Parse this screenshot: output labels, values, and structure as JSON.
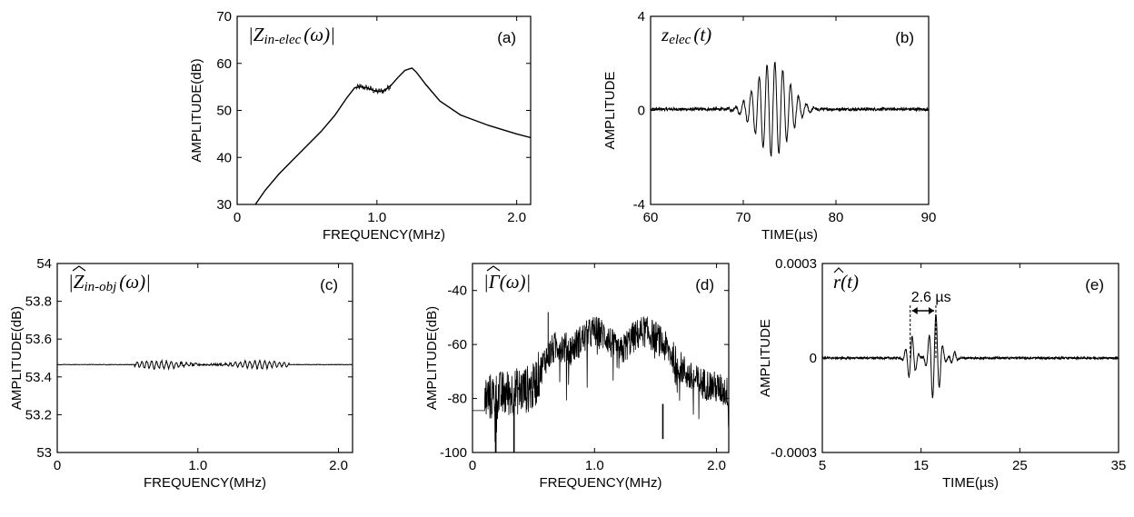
{
  "chart_data": [
    {
      "id": "a",
      "type": "line",
      "panel_label": "(a)",
      "title": "|Z",
      "title_sub": "in-elec",
      "title_tail": "(ω)|",
      "xlabel": "FREQUENCY(MHz)",
      "ylabel": "AMPLITUDE(dB)",
      "xlim": [
        0,
        2.1
      ],
      "ylim": [
        30,
        70
      ],
      "xticks": [
        0,
        1.0,
        2.0
      ],
      "xtick_labels": [
        "0",
        "1.0",
        "2.0"
      ],
      "yticks": [
        30,
        40,
        50,
        60,
        70
      ],
      "ytick_labels": [
        "30",
        "40",
        "50",
        "60",
        "70"
      ],
      "series": [
        {
          "x": [
            0.13,
            0.2,
            0.3,
            0.4,
            0.5,
            0.6,
            0.7,
            0.78,
            0.84,
            0.88,
            0.93,
            1.0,
            1.05,
            1.1,
            1.15,
            1.2,
            1.25,
            1.28,
            1.35,
            1.45,
            1.6,
            1.8,
            2.0,
            2.1
          ],
          "y": [
            30,
            33,
            36.5,
            39.5,
            42.5,
            45.5,
            49,
            52.5,
            54.8,
            55,
            54.8,
            54,
            54.2,
            55.3,
            57,
            58.5,
            59,
            58.2,
            55.5,
            52,
            49,
            46.8,
            45,
            44.2
          ]
        }
      ],
      "noise_band": [
        0.85,
        1.1
      ]
    },
    {
      "id": "b",
      "type": "line",
      "panel_label": "(b)",
      "title": "z",
      "title_sub": "elec",
      "title_tail": "(t)",
      "xlabel": "TIME(µs)",
      "ylabel": "AMPLITUDE",
      "xlim": [
        60,
        90
      ],
      "ylim": [
        -4,
        4
      ],
      "xticks": [
        60,
        70,
        80,
        90
      ],
      "xtick_labels": [
        "60",
        "70",
        "80",
        "90"
      ],
      "yticks": [
        -4,
        0,
        4
      ],
      "ytick_labels": [
        "-4",
        "0",
        "4"
      ],
      "signal": {
        "type": "wave_packet",
        "center": 73.2,
        "width": 2.4,
        "amplitude": 2.0,
        "period": 0.85,
        "baseline": 0.05
      }
    },
    {
      "id": "c",
      "type": "line",
      "panel_label": "(c)",
      "title": "|Z",
      "title_sub": "in-obj",
      "title_tail": "(ω)|",
      "xlabel": "FREQUENCY(MHz)",
      "ylabel": "AMPLITUDE(dB)",
      "xlim": [
        0,
        2.1
      ],
      "ylim": [
        53,
        54
      ],
      "xticks": [
        0,
        1.0,
        2.0
      ],
      "xtick_labels": [
        "0",
        "1.0",
        "2.0"
      ],
      "yticks": [
        53,
        53.2,
        53.4,
        53.6,
        53.8,
        54
      ],
      "ytick_labels": [
        "53",
        "53.2",
        "53.4",
        "53.6",
        "53.8",
        "54"
      ],
      "signal": {
        "type": "flat_ripple",
        "level": 53.465,
        "ripple": 0.02,
        "band": [
          0.55,
          1.65
        ]
      }
    },
    {
      "id": "d",
      "type": "line",
      "panel_label": "(d)",
      "title": "|Γ(ω)|",
      "title_sub": "",
      "title_tail": "",
      "xlabel": "FREQUENCY(MHz)",
      "ylabel": "AMPLITUDE(dB)",
      "xlim": [
        0,
        2.1
      ],
      "ylim": [
        -100,
        -30
      ],
      "xticks": [
        0,
        1.0,
        2.0
      ],
      "xtick_labels": [
        "0",
        "1.0",
        "2.0"
      ],
      "yticks": [
        -100,
        -80,
        -60,
        -40
      ],
      "ytick_labels": [
        "-100",
        "-80",
        "-60",
        "-40"
      ],
      "envelope": {
        "x": [
          0.1,
          0.3,
          0.5,
          0.6,
          0.7,
          0.8,
          0.9,
          1.0,
          1.1,
          1.2,
          1.3,
          1.4,
          1.5,
          1.6,
          1.7,
          1.8,
          2.0,
          2.1
        ],
        "y": [
          -80,
          -78,
          -76,
          -65,
          -60,
          -62,
          -58,
          -55,
          -57,
          -64,
          -58,
          -55,
          -57,
          -62,
          -68,
          -73,
          -76,
          -78
        ]
      }
    },
    {
      "id": "e",
      "type": "line",
      "panel_label": "(e)",
      "title": "r(t)",
      "title_sub": "",
      "title_tail": "",
      "xlabel": "TIME(µs)",
      "ylabel": "AMPLITUDE",
      "xlim": [
        5,
        35
      ],
      "ylim": [
        -0.0003,
        0.0003
      ],
      "xticks": [
        5,
        15,
        25,
        35
      ],
      "xtick_labels": [
        "5",
        "15",
        "25",
        "35"
      ],
      "yticks": [
        -0.0003,
        0,
        0.0003
      ],
      "ytick_labels": [
        "-0.0003",
        "0",
        "0.0003"
      ],
      "annotation": {
        "text": "2.6 µs",
        "x1": 13.9,
        "x2": 16.5
      },
      "pulses": [
        {
          "center": 14.0,
          "width": 0.6,
          "amplitude": 7e-05,
          "period": 0.7
        },
        {
          "center": 16.4,
          "width": 0.7,
          "amplitude": 0.00014,
          "period": 0.7
        },
        {
          "center": 18.3,
          "width": 0.4,
          "amplitude": 2e-05,
          "period": 0.7
        }
      ]
    }
  ]
}
